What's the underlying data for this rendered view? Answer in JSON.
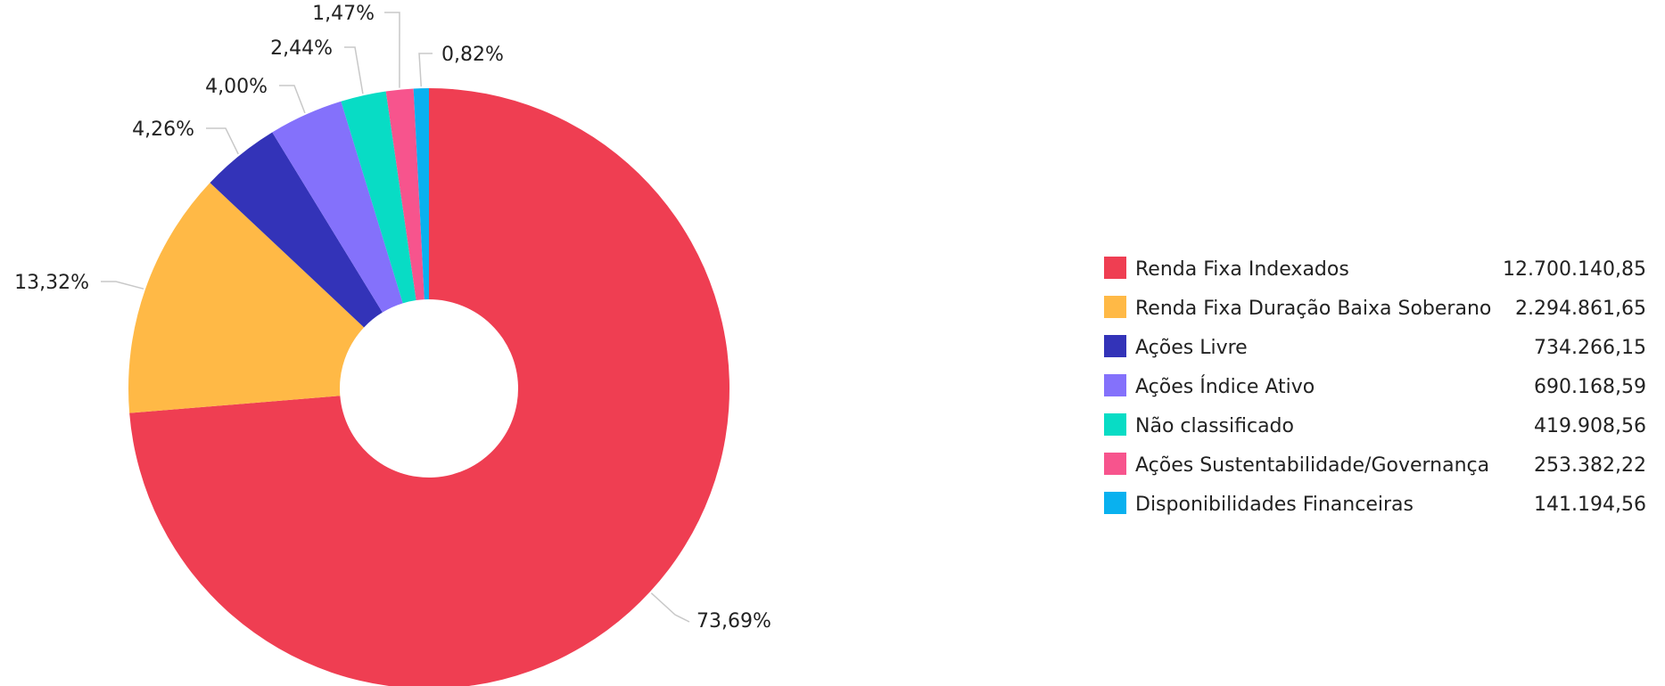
{
  "chart_data": {
    "type": "pie",
    "donut": true,
    "legend_position": "right",
    "categories": [
      "Renda Fixa Indexados",
      "Renda Fixa Duração Baixa Soberano",
      "Ações Livre",
      "Ações Índice Ativo",
      "Não classificado",
      "Ações Sustentabilidade/Governança",
      "Disponibilidades Financeiras"
    ],
    "values": [
      12700140.85,
      2294861.65,
      734266.15,
      690168.59,
      419908.56,
      253382.22,
      141194.56
    ],
    "value_labels": [
      "12.700.140,85",
      "2.294.861,65",
      "734.266,15",
      "690.168,59",
      "419.908,56",
      "253.382,22",
      "141.194,56"
    ],
    "percent_labels": [
      "73,69%",
      "13,32%",
      "4,26%",
      "4,00%",
      "2,44%",
      "1,47%",
      "0,82%"
    ],
    "colors": [
      "#ef3e52",
      "#ffb946",
      "#3333b8",
      "#8471fb",
      "#08dcc5",
      "#f7548d",
      "#09b1ef"
    ]
  }
}
